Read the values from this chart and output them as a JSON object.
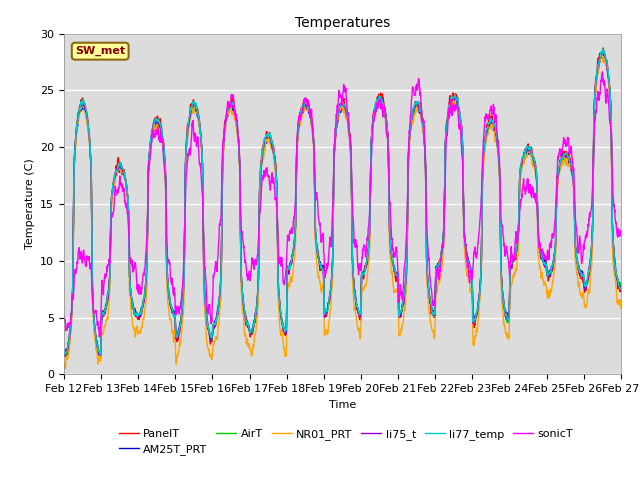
{
  "title": "Temperatures",
  "xlabel": "Time",
  "ylabel": "Temperature (C)",
  "ylim": [
    0,
    30
  ],
  "annotation": "SW_met",
  "annotation_color": "#8B0000",
  "annotation_bg": "#FFFF99",
  "annotation_border": "#8B6914",
  "series_names": [
    "PanelT",
    "AM25T_PRT",
    "AirT",
    "NR01_PRT",
    "li75_t",
    "li77_temp",
    "sonicT"
  ],
  "series_colors": [
    "#FF0000",
    "#0000CD",
    "#00CC00",
    "#FFA500",
    "#9900CC",
    "#00CCCC",
    "#FF00FF"
  ],
  "x_tick_labels": [
    "Feb 12",
    "Feb 13",
    "Feb 14",
    "Feb 15",
    "Feb 16",
    "Feb 17",
    "Feb 18",
    "Feb 19",
    "Feb 20",
    "Feb 21",
    "Feb 22",
    "Feb 23",
    "Feb 24",
    "Feb 25",
    "Feb 26",
    "Feb 27"
  ],
  "plot_bg": "#DCDCDC",
  "grid_color": "#FFFFFF",
  "linewidth": 1.0
}
